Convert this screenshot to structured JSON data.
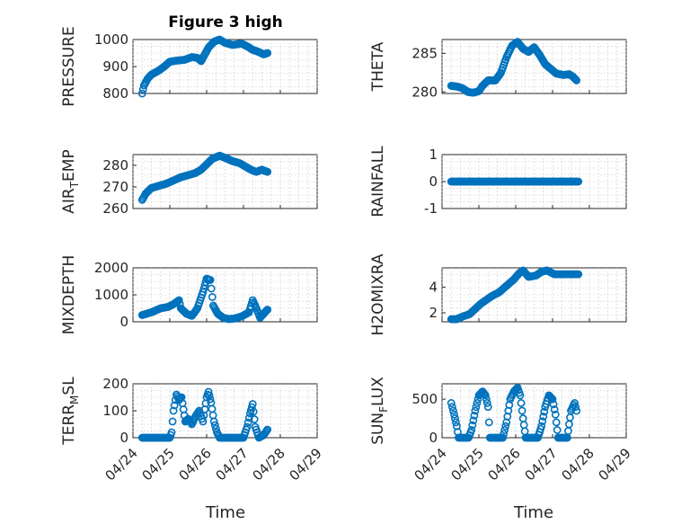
{
  "figure": {
    "title": "Figure 3 high",
    "xlabel": "Time",
    "marker_color": "#0072BD",
    "x_ticks": [
      0,
      1,
      2,
      3,
      4,
      5
    ],
    "x_tick_labels": [
      "04/24",
      "04/25",
      "04/26",
      "04/27",
      "04/28",
      "04/29"
    ],
    "xlim": [
      0,
      5
    ]
  },
  "chart_data": [
    {
      "id": "pressure",
      "type": "scatter",
      "ylabel": "PRESSURE",
      "ylim": [
        800,
        1000
      ],
      "y_ticks": [
        800,
        900,
        1000
      ],
      "y_tick_labels": [
        "800",
        "900",
        "1000"
      ],
      "series": [
        {
          "name": "PRESSURE",
          "anchors": [
            [
              0.25,
              800
            ],
            [
              0.3,
              830
            ],
            [
              0.4,
              855
            ],
            [
              0.5,
              870
            ],
            [
              0.7,
              885
            ],
            [
              0.85,
              900
            ],
            [
              1.0,
              918
            ],
            [
              1.2,
              922
            ],
            [
              1.4,
              925
            ],
            [
              1.6,
              935
            ],
            [
              1.75,
              932
            ],
            [
              1.85,
              920
            ],
            [
              1.95,
              945
            ],
            [
              2.05,
              970
            ],
            [
              2.2,
              992
            ],
            [
              2.35,
              1000
            ],
            [
              2.5,
              988
            ],
            [
              2.7,
              980
            ],
            [
              2.95,
              985
            ],
            [
              3.1,
              975
            ],
            [
              3.25,
              962
            ],
            [
              3.4,
              955
            ],
            [
              3.55,
              945
            ],
            [
              3.65,
              950
            ]
          ]
        }
      ]
    },
    {
      "id": "theta",
      "type": "scatter",
      "ylabel": "THETA",
      "ylim": [
        279.8,
        286.8
      ],
      "y_ticks": [
        280,
        285
      ],
      "y_tick_labels": [
        "280",
        "285"
      ],
      "series": [
        {
          "name": "THETA",
          "anchors": [
            [
              0.25,
              280.8
            ],
            [
              0.4,
              280.7
            ],
            [
              0.55,
              280.5
            ],
            [
              0.7,
              280.0
            ],
            [
              0.85,
              279.9
            ],
            [
              1.0,
              280.1
            ],
            [
              1.1,
              280.8
            ],
            [
              1.25,
              281.5
            ],
            [
              1.45,
              281.5
            ],
            [
              1.6,
              282.5
            ],
            [
              1.75,
              284.5
            ],
            [
              1.9,
              286.0
            ],
            [
              2.05,
              286.5
            ],
            [
              2.2,
              285.6
            ],
            [
              2.35,
              285.2
            ],
            [
              2.5,
              285.8
            ],
            [
              2.65,
              284.8
            ],
            [
              2.8,
              283.6
            ],
            [
              2.95,
              283.0
            ],
            [
              3.1,
              282.4
            ],
            [
              3.3,
              282.2
            ],
            [
              3.45,
              282.3
            ],
            [
              3.55,
              282.0
            ],
            [
              3.65,
              281.5
            ]
          ]
        }
      ]
    },
    {
      "id": "air_temp",
      "type": "scatter",
      "ylabel": "AIR_TEMP",
      "ylabel_main": "AIR",
      "ylabel_sub": "T",
      "ylabel_tail": "EMP",
      "ylim": [
        260,
        285
      ],
      "y_ticks": [
        260,
        270,
        280
      ],
      "y_tick_labels": [
        "260",
        "270",
        "280"
      ],
      "series": [
        {
          "name": "AIR_TEMP",
          "anchors": [
            [
              0.25,
              264
            ],
            [
              0.35,
              267
            ],
            [
              0.5,
              269.5
            ],
            [
              0.7,
              270.5
            ],
            [
              0.9,
              271.5
            ],
            [
              1.1,
              273
            ],
            [
              1.3,
              274.5
            ],
            [
              1.5,
              275.5
            ],
            [
              1.7,
              276.5
            ],
            [
              1.85,
              278
            ],
            [
              2.0,
              280.5
            ],
            [
              2.15,
              283
            ],
            [
              2.35,
              284.5
            ],
            [
              2.5,
              283.5
            ],
            [
              2.7,
              282
            ],
            [
              2.9,
              281
            ],
            [
              3.05,
              279.5
            ],
            [
              3.2,
              278
            ],
            [
              3.35,
              277
            ],
            [
              3.5,
              278
            ],
            [
              3.65,
              277
            ]
          ]
        }
      ]
    },
    {
      "id": "rainfall",
      "type": "scatter",
      "ylabel": "RAINFALL",
      "ylim": [
        -1,
        1
      ],
      "y_ticks": [
        -1,
        0,
        1
      ],
      "y_tick_labels": [
        "-1",
        "0",
        "1"
      ],
      "series": [
        {
          "name": "RAINFALL",
          "anchors": [
            [
              0.25,
              0
            ],
            [
              3.7,
              0
            ]
          ]
        }
      ]
    },
    {
      "id": "mixdepth",
      "type": "scatter",
      "ylabel": "MIXDEPTH",
      "ylim": [
        0,
        2000
      ],
      "y_ticks": [
        0,
        1000,
        2000
      ],
      "y_tick_labels": [
        "0",
        "1000",
        "2000"
      ],
      "series": [
        {
          "name": "MIXDEPTH",
          "anchors": [
            [
              0.25,
              250
            ],
            [
              0.5,
              350
            ],
            [
              0.75,
              500
            ],
            [
              0.95,
              550
            ],
            [
              1.1,
              650
            ],
            [
              1.25,
              800
            ],
            [
              1.3,
              500
            ],
            [
              1.45,
              300
            ],
            [
              1.6,
              220
            ],
            [
              1.75,
              500
            ],
            [
              1.9,
              1100
            ],
            [
              2.0,
              1600
            ],
            [
              2.1,
              1550
            ],
            [
              2.18,
              600
            ],
            [
              2.3,
              300
            ],
            [
              2.45,
              150
            ],
            [
              2.6,
              100
            ],
            [
              2.75,
              120
            ],
            [
              2.95,
              200
            ],
            [
              3.15,
              350
            ],
            [
              3.25,
              800
            ],
            [
              3.35,
              500
            ],
            [
              3.45,
              150
            ],
            [
              3.55,
              300
            ],
            [
              3.65,
              450
            ]
          ]
        }
      ]
    },
    {
      "id": "h2omixra",
      "type": "scatter",
      "ylabel": "H2OMIXRA",
      "ylim": [
        1.3,
        5.5
      ],
      "y_ticks": [
        2,
        4
      ],
      "y_tick_labels": [
        "2",
        "4"
      ],
      "series": [
        {
          "name": "H2OMIXRA",
          "anchors": [
            [
              0.25,
              1.5
            ],
            [
              0.4,
              1.5
            ],
            [
              0.55,
              1.7
            ],
            [
              0.75,
              1.9
            ],
            [
              0.9,
              2.3
            ],
            [
              1.05,
              2.7
            ],
            [
              1.2,
              3.0
            ],
            [
              1.35,
              3.3
            ],
            [
              1.55,
              3.6
            ],
            [
              1.75,
              4.1
            ],
            [
              1.95,
              4.6
            ],
            [
              2.1,
              5.1
            ],
            [
              2.2,
              5.3
            ],
            [
              2.35,
              4.8
            ],
            [
              2.55,
              4.9
            ],
            [
              2.7,
              5.2
            ],
            [
              2.85,
              5.3
            ],
            [
              3.05,
              5.0
            ],
            [
              3.3,
              5.0
            ],
            [
              3.5,
              5.0
            ],
            [
              3.7,
              5.0
            ]
          ]
        }
      ]
    },
    {
      "id": "terr_msl",
      "type": "scatter",
      "ylabel": "TERR_MSL",
      "ylabel_main": "TERR",
      "ylabel_sub": "M",
      "ylabel_tail": "SL",
      "ylim": [
        0,
        200
      ],
      "y_ticks": [
        0,
        100,
        200
      ],
      "y_tick_labels": [
        "0",
        "100",
        "200"
      ],
      "series": [
        {
          "name": "TERR_MSL",
          "anchors": [
            [
              0.25,
              0
            ],
            [
              0.6,
              0
            ],
            [
              0.9,
              0
            ],
            [
              1.0,
              0
            ],
            [
              1.05,
              20
            ],
            [
              1.1,
              100
            ],
            [
              1.18,
              160
            ],
            [
              1.25,
              140
            ],
            [
              1.32,
              150
            ],
            [
              1.42,
              60
            ],
            [
              1.5,
              70
            ],
            [
              1.6,
              50
            ],
            [
              1.7,
              80
            ],
            [
              1.8,
              100
            ],
            [
              1.9,
              60
            ],
            [
              2.0,
              150
            ],
            [
              2.05,
              170
            ],
            [
              2.12,
              130
            ],
            [
              2.2,
              60
            ],
            [
              2.28,
              20
            ],
            [
              2.35,
              0
            ],
            [
              2.6,
              0
            ],
            [
              2.9,
              0
            ],
            [
              3.0,
              0
            ],
            [
              3.1,
              40
            ],
            [
              3.18,
              90
            ],
            [
              3.25,
              125
            ],
            [
              3.32,
              40
            ],
            [
              3.42,
              0
            ],
            [
              3.55,
              10
            ],
            [
              3.65,
              30
            ]
          ]
        }
      ]
    },
    {
      "id": "sun_flux",
      "type": "scatter",
      "ylabel": "SUN_FLUX",
      "ylabel_main": "SUN",
      "ylabel_sub": "F",
      "ylabel_tail": "LUX",
      "ylim": [
        0,
        700
      ],
      "y_ticks": [
        0,
        500
      ],
      "y_tick_labels": [
        "0",
        "500"
      ],
      "series": [
        {
          "name": "SUN_FLUX",
          "anchors": [
            [
              0.25,
              450
            ],
            [
              0.33,
              300
            ],
            [
              0.4,
              150
            ],
            [
              0.45,
              0
            ],
            [
              0.55,
              0
            ],
            [
              0.72,
              0
            ],
            [
              0.8,
              100
            ],
            [
              0.9,
              350
            ],
            [
              1.0,
              550
            ],
            [
              1.1,
              600
            ],
            [
              1.18,
              550
            ],
            [
              1.25,
              400
            ],
            [
              1.3,
              0
            ],
            [
              1.5,
              0
            ],
            [
              1.65,
              0
            ],
            [
              1.75,
              200
            ],
            [
              1.85,
              500
            ],
            [
              1.95,
              600
            ],
            [
              2.05,
              650
            ],
            [
              2.12,
              550
            ],
            [
              2.2,
              250
            ],
            [
              2.27,
              0
            ],
            [
              2.5,
              0
            ],
            [
              2.6,
              0
            ],
            [
              2.7,
              150
            ],
            [
              2.8,
              400
            ],
            [
              2.9,
              550
            ],
            [
              3.0,
              500
            ],
            [
              3.08,
              300
            ],
            [
              3.15,
              0
            ],
            [
              3.35,
              0
            ],
            [
              3.4,
              0
            ],
            [
              3.5,
              350
            ],
            [
              3.6,
              450
            ],
            [
              3.65,
              350
            ]
          ]
        }
      ]
    }
  ]
}
